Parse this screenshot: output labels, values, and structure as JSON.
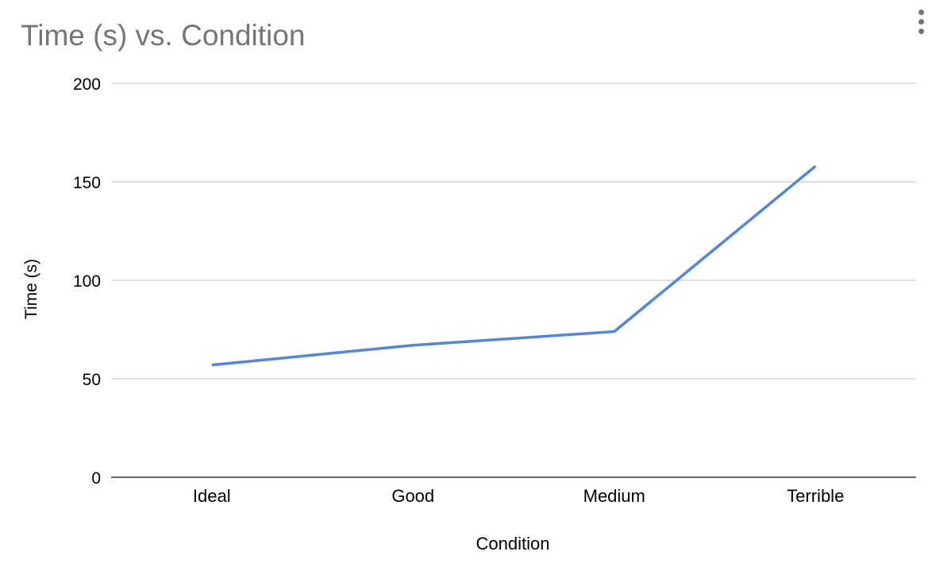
{
  "chart_data": {
    "type": "line",
    "title": "Time (s) vs. Condition",
    "xlabel": "Condition",
    "ylabel": "Time (s)",
    "categories": [
      "Ideal",
      "Good",
      "Medium",
      "Terrible"
    ],
    "series": [
      {
        "values": [
          57,
          67,
          74,
          158
        ],
        "color": "#4f86e0"
      }
    ],
    "ylim": [
      0,
      200
    ],
    "yticks": [
      "0",
      "50",
      "100",
      "150",
      "200"
    ],
    "grid": true,
    "legend": "none"
  },
  "menu": {
    "icon": "more-vert-icon"
  }
}
